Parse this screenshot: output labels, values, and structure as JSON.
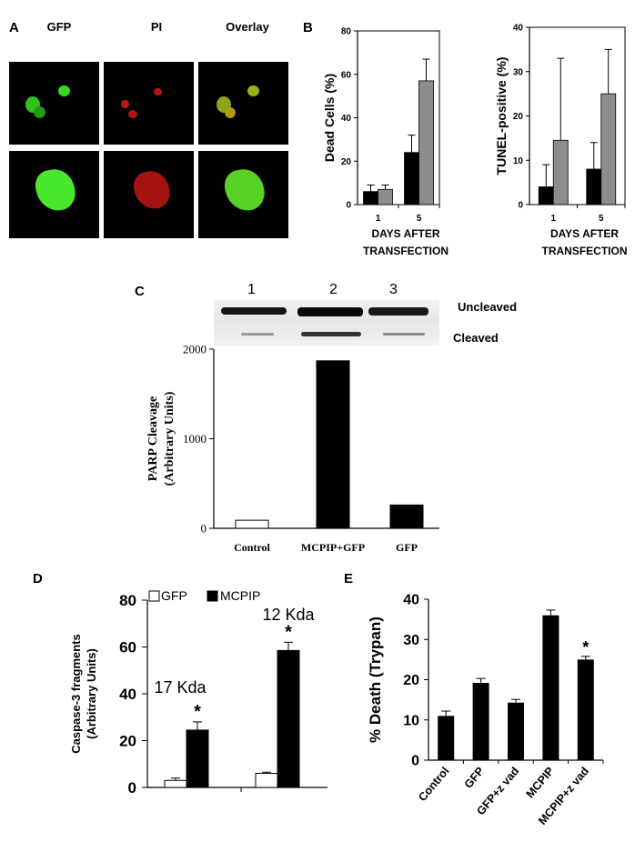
{
  "panels": {
    "a": {
      "letter": "A",
      "columns": [
        "GFP",
        "PI",
        "Overlay"
      ]
    },
    "b": {
      "letter": "B"
    },
    "c": {
      "letter": "C",
      "lanes": [
        "1",
        "2",
        "3"
      ],
      "band_labels": [
        "Uncleaved",
        "Cleaved"
      ]
    },
    "d": {
      "letter": "D"
    },
    "e": {
      "letter": "E"
    }
  },
  "colors": {
    "gfp_green": "#32e01c",
    "pi_red": "#d01818",
    "bar_black": "#000000",
    "bar_gray": "#8c8c8c",
    "bar_white": "#ffffff"
  },
  "chart_data": [
    {
      "id": "B-left",
      "type": "bar",
      "ylabel": "Dead Cells (%)",
      "xlabel_lines": [
        "DAYS AFTER",
        "TRANSFECTION"
      ],
      "categories": [
        "1",
        "5"
      ],
      "ylim": [
        0,
        80
      ],
      "yticks": [
        0,
        20,
        40,
        60,
        80
      ],
      "series": [
        {
          "values": [
            6,
            24
          ],
          "errors": [
            3,
            8
          ],
          "color": "#000000"
        },
        {
          "values": [
            7,
            57
          ],
          "errors": [
            2,
            10
          ],
          "color": "#8c8c8c"
        }
      ]
    },
    {
      "id": "B-right",
      "type": "bar",
      "ylabel": "TUNEL-positive (%)",
      "xlabel_lines": [
        "DAYS AFTER",
        "TRANSFECTION"
      ],
      "categories": [
        "1",
        "5"
      ],
      "ylim": [
        0,
        40
      ],
      "yticks": [
        0,
        10,
        20,
        30,
        40
      ],
      "series": [
        {
          "values": [
            4,
            8
          ],
          "errors": [
            5,
            6
          ],
          "color": "#000000"
        },
        {
          "values": [
            14.5,
            25
          ],
          "errors": [
            18.5,
            10
          ],
          "color": "#8c8c8c"
        }
      ]
    },
    {
      "id": "C",
      "type": "bar",
      "ylabel_lines": [
        "PARP Cleavage",
        "(Arbitrary Units)"
      ],
      "categories": [
        "Control",
        "MCPIP+GFP",
        "GFP"
      ],
      "values": [
        90,
        1870,
        260
      ],
      "fills": [
        "#ffffff",
        "#000000",
        "#000000"
      ],
      "ylim": [
        0,
        2000
      ],
      "yticks": [
        0,
        1000,
        2000
      ]
    },
    {
      "id": "D",
      "type": "bar",
      "ylabel_lines": [
        "Caspase-3 fragments",
        "(Arbitrary Units)"
      ],
      "groups": [
        "17 Kda",
        "12 Kda"
      ],
      "ylim": [
        0,
        80
      ],
      "yticks": [
        0,
        20,
        40,
        60,
        80
      ],
      "legend": [
        "GFP",
        "MCPIP"
      ],
      "series": [
        {
          "name": "GFP",
          "values": [
            3,
            6
          ],
          "errors": [
            1,
            0.5
          ],
          "color": "#ffffff"
        },
        {
          "name": "MCPIP",
          "values": [
            24.5,
            58.5
          ],
          "errors": [
            3.5,
            3.5
          ],
          "color": "#000000"
        }
      ],
      "annotations": [
        "*",
        "*"
      ]
    },
    {
      "id": "E",
      "type": "bar",
      "ylabel": "% Death (Trypan)",
      "categories": [
        "Control",
        "GFP",
        "GFP+z vad",
        "MCPIP",
        "MCPIP+z vad"
      ],
      "values": [
        11,
        19.2,
        14.3,
        36,
        25
      ],
      "errors": [
        1.2,
        1.1,
        0.8,
        1.3,
        0.8
      ],
      "ylim": [
        0,
        40
      ],
      "yticks": [
        0,
        10,
        20,
        30,
        40
      ],
      "annotations": [
        "",
        "",
        "",
        "",
        "*"
      ]
    }
  ]
}
